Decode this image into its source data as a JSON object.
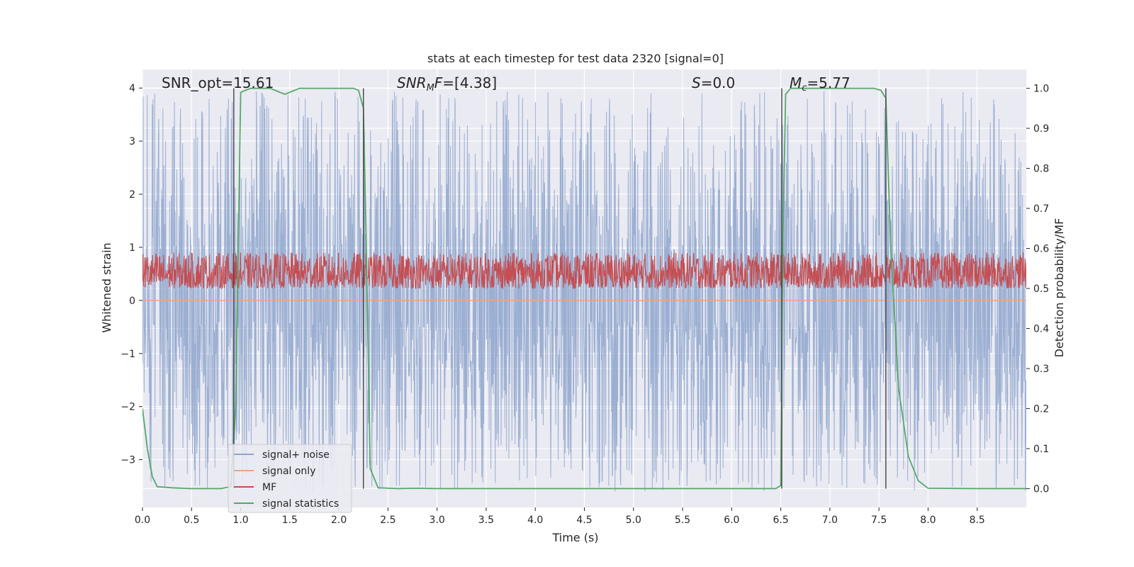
{
  "chart_data": {
    "type": "line",
    "title": "stats at each timestep for test data 2320 [signal=0]",
    "xlabel": "Time (s)",
    "ylabel": "Whitened strain",
    "ylabel_right": "Detection probability/MF",
    "xlim": [
      0.0,
      9.0
    ],
    "ylim": [
      -3.9,
      4.35
    ],
    "ylim_right": [
      -0.047,
      1.047
    ],
    "x_ticks": [
      "0.0",
      "0.5",
      "1.0",
      "1.5",
      "2.0",
      "2.5",
      "3.0",
      "3.5",
      "4.0",
      "4.5",
      "5.0",
      "5.5",
      "6.0",
      "6.5",
      "7.0",
      "7.5",
      "8.0",
      "8.5"
    ],
    "y_ticks": [
      "4",
      "3",
      "2",
      "1",
      "0",
      "−1",
      "−2",
      "−3"
    ],
    "y_ticks_right": [
      "1.0",
      "0.9",
      "0.8",
      "0.7",
      "0.6",
      "0.5",
      "0.4",
      "0.3",
      "0.2",
      "0.1",
      "0.0"
    ],
    "grid": true,
    "legend_position": "lower-left",
    "annotations": {
      "snr_opt": "SNR_opt=15.61",
      "snr_mf_sym": "SNR",
      "snr_mf_sub": "M",
      "snr_mf_rest": "F=[4.38]",
      "s_sym": "S",
      "s_rest": "=0.0",
      "mc_sym": "M",
      "mc_sub": "c",
      "mc_rest": "=5.77"
    },
    "vertical_lines_s": [
      0.93,
      2.25,
      6.51,
      7.57
    ],
    "series": [
      {
        "name": "signal+ noise",
        "color": "#8da4cc",
        "kind": "noise",
        "amplitude_range": [
          -3.6,
          3.95
        ]
      },
      {
        "name": "signal only",
        "color": "#e8a58a",
        "kind": "flat",
        "value": 0.0
      },
      {
        "name": "MF",
        "color": "#c44e52",
        "kind": "noise",
        "axis": "right",
        "range": [
          0.5,
          0.59
        ]
      },
      {
        "name": "signal statistics",
        "color": "#55a868",
        "axis": "right",
        "x": [
          0.0,
          0.05,
          0.1,
          0.15,
          0.3,
          0.5,
          0.8,
          0.9,
          0.95,
          1.0,
          1.1,
          1.3,
          1.45,
          1.6,
          1.8,
          2.0,
          2.15,
          2.2,
          2.25,
          2.28,
          2.32,
          2.4,
          2.6,
          2.8,
          3.0,
          4.0,
          5.0,
          6.0,
          6.45,
          6.5,
          6.52,
          6.55,
          6.6,
          6.65,
          6.8,
          7.0,
          7.3,
          7.45,
          7.52,
          7.57,
          7.62,
          7.7,
          7.8,
          7.9,
          8.0,
          8.5,
          9.0
        ],
        "values": [
          0.2,
          0.1,
          0.03,
          0.005,
          0.002,
          0.0,
          0.0,
          0.005,
          0.2,
          0.99,
          1.0,
          1.0,
          0.985,
          1.0,
          1.0,
          1.0,
          1.0,
          0.995,
          0.95,
          0.6,
          0.05,
          0.002,
          0.0,
          0.001,
          0.0,
          0.0,
          0.0,
          0.0,
          0.0,
          0.008,
          0.6,
          0.985,
          1.0,
          1.0,
          1.0,
          1.0,
          1.0,
          1.0,
          0.995,
          0.975,
          0.6,
          0.25,
          0.08,
          0.02,
          0.001,
          0.0,
          0.0
        ]
      }
    ]
  }
}
